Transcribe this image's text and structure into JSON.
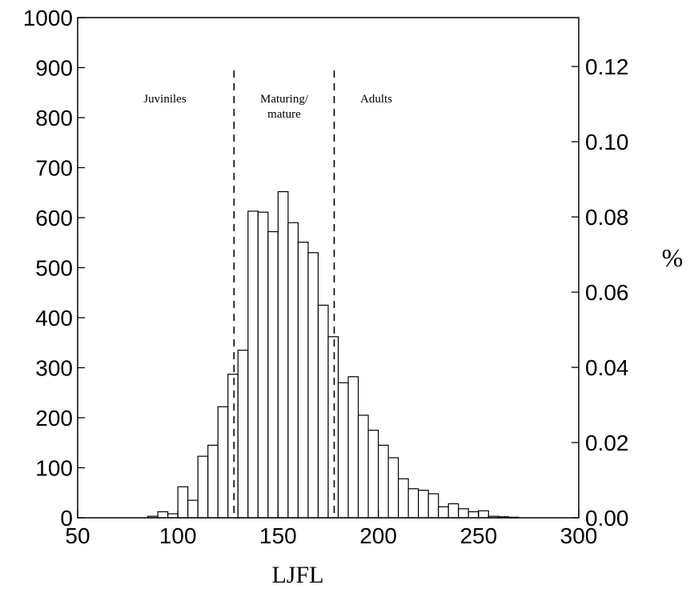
{
  "chart_data": {
    "type": "bar",
    "subtype": "histogram",
    "xlabel": "LJFL",
    "ylabel": "",
    "y2label": "%",
    "xlim": [
      50,
      300
    ],
    "ylim": [
      0,
      1000
    ],
    "y2lim": [
      0,
      0.133
    ],
    "x_ticks": [
      "50",
      "100",
      "150",
      "200",
      "250",
      "300"
    ],
    "y_ticks": [
      "0",
      "100",
      "200",
      "300",
      "400",
      "500",
      "600",
      "700",
      "800",
      "900",
      "1000"
    ],
    "y2_ticks": [
      "0.00",
      "0.02",
      "0.04",
      "0.06",
      "0.08",
      "0.10",
      "0.12"
    ],
    "bin_width": 5,
    "bins": [
      {
        "x": 85,
        "value": 3
      },
      {
        "x": 90,
        "value": 12
      },
      {
        "x": 95,
        "value": 8
      },
      {
        "x": 100,
        "value": 62
      },
      {
        "x": 105,
        "value": 35
      },
      {
        "x": 110,
        "value": 123
      },
      {
        "x": 115,
        "value": 145
      },
      {
        "x": 120,
        "value": 222
      },
      {
        "x": 125,
        "value": 287
      },
      {
        "x": 130,
        "value": 335
      },
      {
        "x": 135,
        "value": 613
      },
      {
        "x": 140,
        "value": 611
      },
      {
        "x": 145,
        "value": 572
      },
      {
        "x": 150,
        "value": 652
      },
      {
        "x": 155,
        "value": 590
      },
      {
        "x": 160,
        "value": 551
      },
      {
        "x": 165,
        "value": 530
      },
      {
        "x": 170,
        "value": 425
      },
      {
        "x": 175,
        "value": 362
      },
      {
        "x": 180,
        "value": 270
      },
      {
        "x": 185,
        "value": 282
      },
      {
        "x": 190,
        "value": 205
      },
      {
        "x": 195,
        "value": 175
      },
      {
        "x": 200,
        "value": 145
      },
      {
        "x": 205,
        "value": 120
      },
      {
        "x": 210,
        "value": 78
      },
      {
        "x": 215,
        "value": 58
      },
      {
        "x": 220,
        "value": 55
      },
      {
        "x": 225,
        "value": 48
      },
      {
        "x": 230,
        "value": 22
      },
      {
        "x": 235,
        "value": 28
      },
      {
        "x": 240,
        "value": 18
      },
      {
        "x": 245,
        "value": 12
      },
      {
        "x": 250,
        "value": 14
      },
      {
        "x": 255,
        "value": 3
      },
      {
        "x": 260,
        "value": 2
      },
      {
        "x": 265,
        "value": 1
      }
    ],
    "divisions": [
      {
        "x": 128,
        "style": "dashed"
      },
      {
        "x": 178,
        "style": "dashed"
      }
    ],
    "annotations": [
      {
        "text": "Juviniles"
      },
      {
        "text": "Maturing/"
      },
      {
        "text": "mature"
      },
      {
        "text": "Adults"
      }
    ],
    "grid": false,
    "legend": "none",
    "colors": {
      "bar_fill": "#ffffff",
      "bar_stroke": "#000000",
      "axis": "#000000"
    }
  }
}
